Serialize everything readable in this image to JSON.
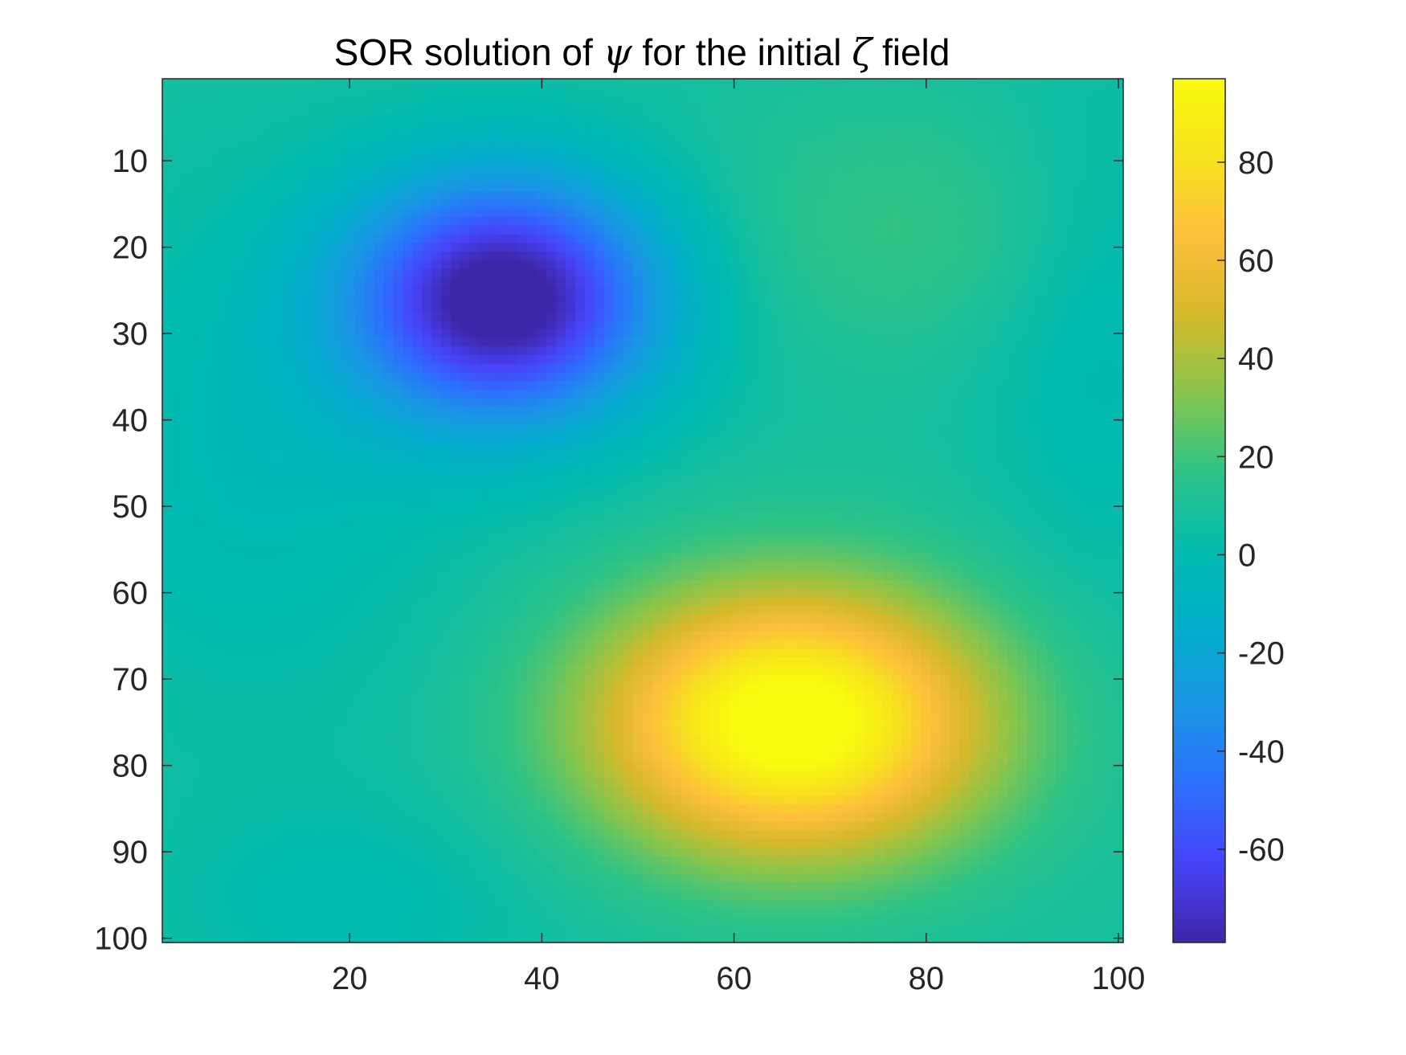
{
  "chart_data": {
    "type": "heatmap",
    "title": {
      "prefix": "SOR solution of ",
      "symbol_psi": "ψ",
      "middle": " for the initial ",
      "symbol_zeta": "ζ",
      "suffix": " field"
    },
    "xlabel": "",
    "ylabel": "",
    "xlim": [
      0.5,
      100.5
    ],
    "ylim": [
      0.5,
      100.5
    ],
    "y_direction": "reversed",
    "x_ticks": [
      20,
      40,
      60,
      80,
      100
    ],
    "y_ticks": [
      10,
      20,
      30,
      40,
      50,
      60,
      70,
      80,
      90,
      100
    ],
    "grid": false,
    "colormap": "parula",
    "colormap_stops": [
      "#3e26a8",
      "#4743f8",
      "#2d6ffe",
      "#1a95e5",
      "#02adca",
      "#02bbaf",
      "#2dc387",
      "#88c54c",
      "#d6b92a",
      "#fdbf3c",
      "#f7e21e",
      "#f9fb0e"
    ],
    "clim": [
      -79,
      97
    ],
    "colorbar_ticks": [
      -60,
      -40,
      -20,
      0,
      20,
      40,
      60,
      80
    ],
    "field_description": "smooth field on 100x100 grid: minimum about -79 near (x=36, y=26), maximum about 97 near (x=66, y=75)",
    "features": [
      {
        "kind": "min",
        "x": 36,
        "y": 26,
        "value": -79
      },
      {
        "kind": "max",
        "x": 66,
        "y": 75,
        "value": 97
      }
    ]
  }
}
